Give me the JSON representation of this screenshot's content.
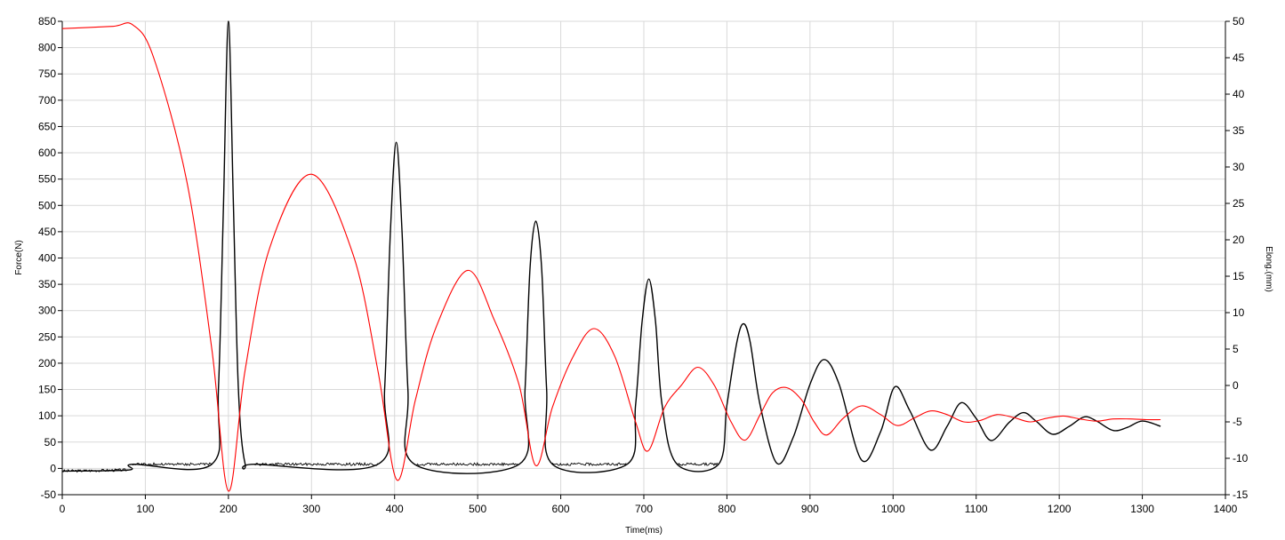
{
  "chart_data": {
    "type": "line",
    "title": "",
    "xlabel": "Time(ms)",
    "ylabel": "Force(N)",
    "y2label": "Elong.(mm)",
    "xlim": [
      0,
      1400
    ],
    "ylim": [
      -50,
      850
    ],
    "y2lim": [
      -15,
      50
    ],
    "grid": true,
    "legend": "none",
    "x_ticks": [
      0,
      100,
      200,
      300,
      400,
      500,
      600,
      700,
      800,
      900,
      1000,
      1100,
      1200,
      1300,
      1400
    ],
    "y_ticks": [
      -50,
      0,
      50,
      100,
      150,
      200,
      250,
      300,
      350,
      400,
      450,
      500,
      550,
      600,
      650,
      700,
      750,
      800,
      850
    ],
    "y2_ticks": [
      -15,
      -10,
      -5,
      0,
      5,
      10,
      15,
      20,
      25,
      30,
      35,
      40,
      45,
      50
    ],
    "colors": {
      "force": "#000000",
      "elong": "#ff0000"
    },
    "series": [
      {
        "axis": "left",
        "color": "#000000",
        "x": [
          0,
          80,
          85,
          180,
          188,
          194,
          200,
          206,
          212,
          220,
          232,
          380,
          388,
          395,
          402,
          409,
          416,
          424,
          550,
          557,
          563,
          570,
          577,
          583,
          590,
          680,
          690,
          698,
          706,
          714,
          722,
          740,
          790,
          800,
          812,
          820,
          828,
          840,
          860,
          880,
          900,
          917,
          935,
          962,
          985,
          1002,
          1020,
          1045,
          1065,
          1082,
          1100,
          1118,
          1140,
          1157,
          1172,
          1192,
          1212,
          1230,
          1245,
          1265,
          1282,
          1300,
          1322
        ],
        "y": [
          -5,
          -3,
          8,
          8,
          150,
          500,
          850,
          500,
          150,
          10,
          8,
          8,
          150,
          450,
          620,
          450,
          150,
          8,
          8,
          150,
          380,
          470,
          380,
          150,
          8,
          8,
          120,
          280,
          360,
          280,
          120,
          8,
          8,
          120,
          240,
          275,
          240,
          120,
          10,
          60,
          160,
          207,
          160,
          16,
          70,
          155,
          110,
          35,
          80,
          125,
          95,
          53,
          88,
          106,
          90,
          65,
          80,
          98,
          90,
          72,
          78,
          90,
          80
        ]
      },
      {
        "axis": "right",
        "color": "#ff0000",
        "x": [
          0,
          60,
          85,
          110,
          150,
          180,
          200,
          220,
          250,
          300,
          350,
          380,
          403,
          425,
          450,
          488,
          520,
          550,
          570,
          590,
          615,
          640,
          665,
          690,
          705,
          725,
          745,
          765,
          785,
          805,
          822,
          840,
          855,
          872,
          890,
          905,
          920,
          940,
          962,
          985,
          1005,
          1025,
          1045,
          1065,
          1085,
          1105,
          1125,
          1145,
          1165,
          1185,
          1205,
          1225,
          1245,
          1265,
          1285,
          1305,
          1322
        ],
        "y": [
          49,
          49.3,
          49.5,
          45,
          28,
          5,
          -14.5,
          2,
          19,
          29,
          18,
          2,
          -13,
          -2,
          8,
          15.8,
          9,
          0,
          -11,
          -3,
          4,
          7.8,
          4,
          -5,
          -9,
          -3,
          0,
          2.5,
          0,
          -5,
          -7.5,
          -4,
          -1,
          -0.3,
          -2,
          -5,
          -6.8,
          -4.5,
          -2.8,
          -4,
          -5.5,
          -4.5,
          -3.5,
          -4,
          -5,
          -4.8,
          -4,
          -4.4,
          -5,
          -4.5,
          -4.2,
          -4.6,
          -4.9,
          -4.6,
          -4.6,
          -4.7,
          -4.7
        ]
      }
    ]
  }
}
